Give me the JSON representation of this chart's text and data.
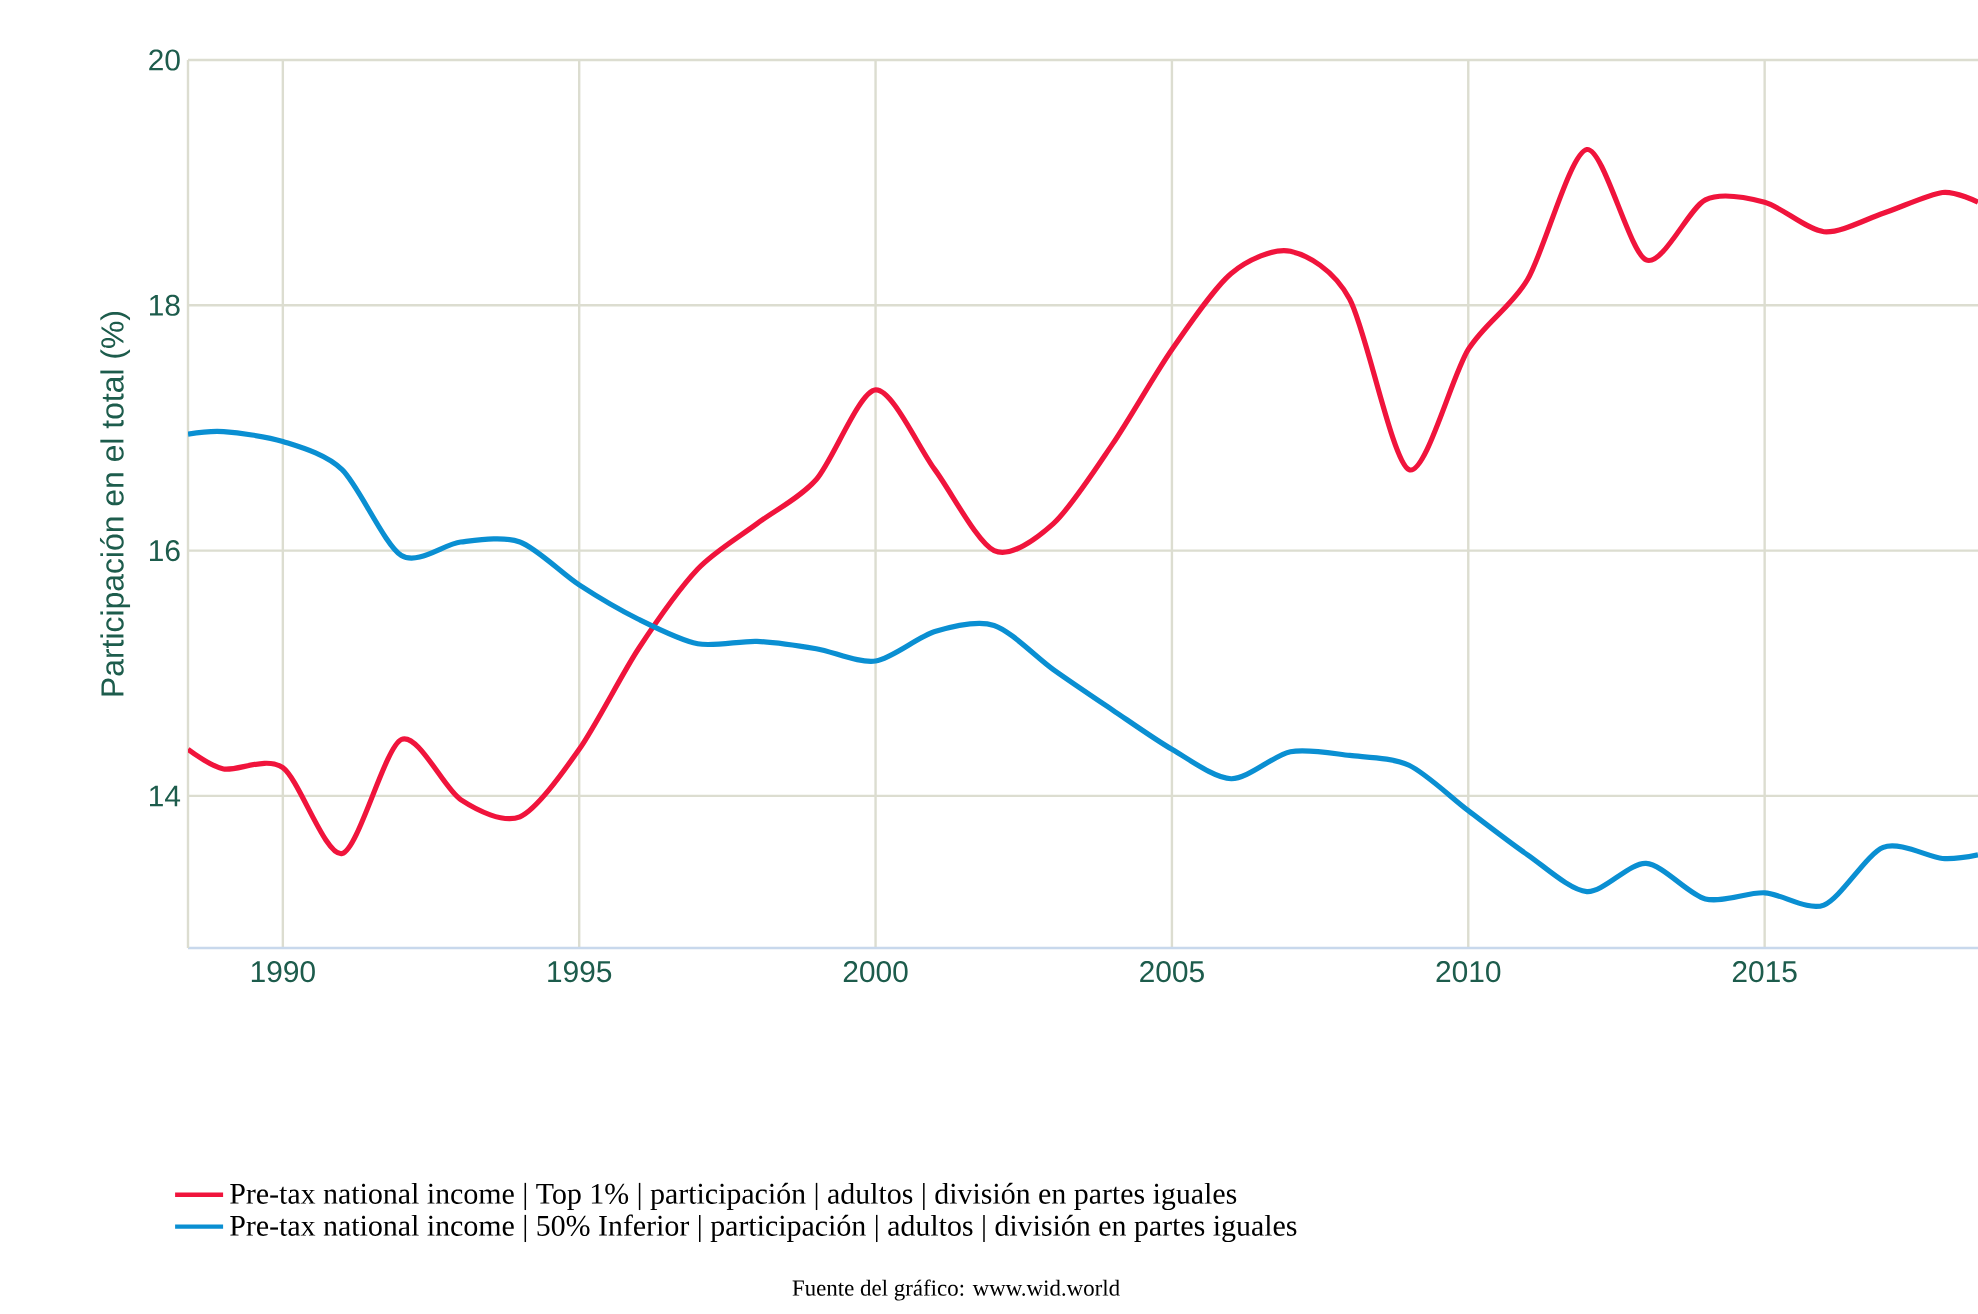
{
  "chart_data": {
    "type": "line",
    "ylabel": "Participación en el total (%)",
    "x": [
      1988.4,
      1989,
      1990,
      1991,
      1992,
      1993,
      1994,
      1995,
      1996,
      1997,
      1998,
      1999,
      2000,
      2001,
      2002,
      2003,
      2004,
      2005,
      2006,
      2007,
      2008,
      2009,
      2010,
      2011,
      2012,
      2013,
      2014,
      2015,
      2016,
      2017,
      2018,
      2018.6
    ],
    "series": [
      {
        "name": "Pre-tax national income | Top 1% | participación | adultos | división en partes iguales",
        "color": "#f0143c",
        "values": [
          14.38,
          14.22,
          14.23,
          13.53,
          14.46,
          13.97,
          13.83,
          14.38,
          15.2,
          15.85,
          16.22,
          16.58,
          17.31,
          16.66,
          16.0,
          16.22,
          16.87,
          17.64,
          18.26,
          18.44,
          18.05,
          16.66,
          17.64,
          18.21,
          19.27,
          18.37,
          18.86,
          18.84,
          18.6,
          18.75,
          18.92,
          18.84
        ]
      },
      {
        "name": "Pre-tax national income | 50% Inferior | participación | adultos | división en partes iguales",
        "color": "#0a8fd2",
        "values": [
          16.95,
          16.97,
          16.89,
          16.66,
          15.96,
          16.07,
          16.07,
          15.72,
          15.44,
          15.24,
          15.26,
          15.2,
          15.1,
          15.34,
          15.39,
          15.03,
          14.7,
          14.38,
          14.14,
          14.36,
          14.33,
          14.25,
          13.88,
          13.52,
          13.22,
          13.45,
          13.16,
          13.21,
          13.11,
          13.58,
          13.49,
          13.52
        ]
      }
    ],
    "xlim": [
      1988.4,
      2018.6
    ],
    "xticks": [
      1990,
      1995,
      2000,
      2005,
      2010,
      2015
    ],
    "ylim": [
      12.76,
      20
    ],
    "yticks": [
      14,
      16,
      18,
      20
    ],
    "grid": true,
    "legend": "bottom",
    "marker": "none",
    "line_style": "solid",
    "annotations": [
      "Fuente del gráfico: www.wid.world"
    ]
  }
}
